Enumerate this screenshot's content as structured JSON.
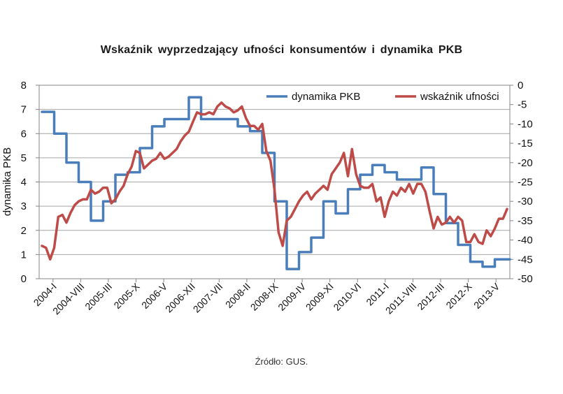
{
  "source_note": "Źródło: GUS.",
  "colors": {
    "pkb": "#4a7ebb",
    "confidence": "#be4b48",
    "grid": "#a6a6a6"
  },
  "chart_data": {
    "type": "line",
    "title": "Wskaźnik  wyprzedzający  ufności  konsumentów  i dynamika  PKB",
    "ylabel": "dynamika PKB",
    "xlabel": "",
    "ylim": [
      0,
      8
    ],
    "ylim_right": [
      -50,
      0
    ],
    "grid": true,
    "legend_position": "top-right",
    "yticks": [
      "0",
      "1",
      "2",
      "3",
      "4",
      "5",
      "6",
      "7",
      "8"
    ],
    "yticks_right": [
      "0",
      "-5",
      "-10",
      "-15",
      "-20",
      "-25",
      "-30",
      "-35",
      "-40",
      "-45",
      "-50"
    ],
    "x_tick_labels": [
      "2004-I",
      "2004-VIII",
      "2005-III",
      "2005-X",
      "2006-V",
      "2006-XII",
      "2007-VII",
      "2008-II",
      "2008-IX",
      "2009-IV",
      "2009-XI",
      "2010-VI",
      "2011-I",
      "2011-VIII",
      "2012-III",
      "2012-X",
      "2013-V"
    ],
    "x_start": "2004-01",
    "x_end": "2013-07",
    "series": [
      {
        "name": "dynamika PKB",
        "axis": "left",
        "color": "#4a7ebb",
        "x": [
          "2004-01",
          "2004-04",
          "2004-07",
          "2004-10",
          "2005-01",
          "2005-04",
          "2005-07",
          "2005-10",
          "2006-01",
          "2006-04",
          "2006-07",
          "2006-10",
          "2007-01",
          "2007-04",
          "2007-07",
          "2007-10",
          "2008-01",
          "2008-04",
          "2008-07",
          "2008-10",
          "2009-01",
          "2009-04",
          "2009-07",
          "2009-10",
          "2010-01",
          "2010-04",
          "2010-07",
          "2010-10",
          "2011-01",
          "2011-04",
          "2011-07",
          "2011-10",
          "2012-01",
          "2012-04",
          "2012-07",
          "2012-10",
          "2013-01",
          "2013-04",
          "2013-07"
        ],
        "values": [
          6.9,
          6.0,
          4.8,
          4.0,
          2.4,
          3.2,
          4.3,
          4.4,
          5.4,
          6.3,
          6.6,
          6.6,
          7.5,
          6.6,
          6.6,
          6.6,
          6.3,
          6.1,
          5.2,
          3.2,
          0.4,
          1.1,
          1.7,
          3.2,
          2.7,
          3.7,
          4.3,
          4.7,
          4.4,
          4.1,
          4.1,
          4.6,
          3.5,
          2.3,
          1.4,
          0.7,
          0.5,
          0.8,
          0.8
        ]
      },
      {
        "name": "wskaźnik ufności",
        "axis": "right",
        "color": "#be4b48",
        "x": [
          "2004-01",
          "2004-02",
          "2004-03",
          "2004-04",
          "2004-05",
          "2004-06",
          "2004-07",
          "2004-08",
          "2004-09",
          "2004-10",
          "2004-11",
          "2004-12",
          "2005-01",
          "2005-02",
          "2005-03",
          "2005-04",
          "2005-05",
          "2005-06",
          "2005-07",
          "2005-08",
          "2005-09",
          "2005-10",
          "2005-11",
          "2005-12",
          "2006-01",
          "2006-02",
          "2006-03",
          "2006-04",
          "2006-05",
          "2006-06",
          "2006-07",
          "2006-08",
          "2006-09",
          "2006-10",
          "2006-11",
          "2006-12",
          "2007-01",
          "2007-02",
          "2007-03",
          "2007-04",
          "2007-05",
          "2007-06",
          "2007-07",
          "2007-08",
          "2007-09",
          "2007-10",
          "2007-11",
          "2007-12",
          "2008-01",
          "2008-02",
          "2008-03",
          "2008-04",
          "2008-05",
          "2008-06",
          "2008-07",
          "2008-08",
          "2008-09",
          "2008-10",
          "2008-11",
          "2008-12",
          "2009-01",
          "2009-02",
          "2009-03",
          "2009-04",
          "2009-05",
          "2009-06",
          "2009-07",
          "2009-08",
          "2009-09",
          "2009-10",
          "2009-11",
          "2009-12",
          "2010-01",
          "2010-02",
          "2010-03",
          "2010-04",
          "2010-05",
          "2010-06",
          "2010-07",
          "2010-08",
          "2010-09",
          "2010-10",
          "2010-11",
          "2010-12",
          "2011-01",
          "2011-02",
          "2011-03",
          "2011-04",
          "2011-05",
          "2011-06",
          "2011-07",
          "2011-08",
          "2011-09",
          "2011-10",
          "2011-11",
          "2011-12",
          "2012-01",
          "2012-02",
          "2012-03",
          "2012-04",
          "2012-05",
          "2012-06",
          "2012-07",
          "2012-08",
          "2012-09",
          "2012-10",
          "2012-11",
          "2012-12",
          "2013-01",
          "2013-02",
          "2013-03",
          "2013-04",
          "2013-05",
          "2013-06",
          "2013-07"
        ],
        "values": [
          -41.5,
          -42,
          -45,
          -42,
          -34,
          -33.5,
          -35.5,
          -33,
          -31,
          -30,
          -29.5,
          -29.5,
          -27,
          -28,
          -27.5,
          -26.5,
          -26.5,
          -30.5,
          -29.5,
          -27.5,
          -26,
          -23,
          -21,
          -17,
          -17.5,
          -21.5,
          -20.5,
          -19.5,
          -19,
          -17.5,
          -19,
          -18.5,
          -17.5,
          -16.5,
          -14.5,
          -13,
          -12,
          -9.5,
          -7,
          -7.5,
          -7.5,
          -7,
          -7.5,
          -5.5,
          -4.5,
          -5.5,
          -6,
          -7,
          -6.5,
          -5.5,
          -8.5,
          -10.5,
          -10.5,
          -11.5,
          -10,
          -17,
          -19.5,
          -27,
          -38,
          -41.5,
          -35,
          -34,
          -32,
          -30,
          -28.5,
          -27.5,
          -29.5,
          -28,
          -27,
          -26,
          -27,
          -23,
          -21.5,
          -20,
          -17.5,
          -23.5,
          -16.5,
          -23,
          -26,
          -26.5,
          -26.5,
          -25.5,
          -30,
          -29,
          -34,
          -30,
          -27.5,
          -28.5,
          -26.5,
          -27.5,
          -25.5,
          -28,
          -25.5,
          -25.5,
          -27.5,
          -32.5,
          -37,
          -34,
          -36,
          -35.5,
          -34,
          -35.5,
          -34,
          -35,
          -40.5,
          -40.5,
          -38.5,
          -40.5,
          -41,
          -37.5,
          -39,
          -37,
          -34.5,
          -34.5,
          -32
        ]
      }
    ]
  }
}
